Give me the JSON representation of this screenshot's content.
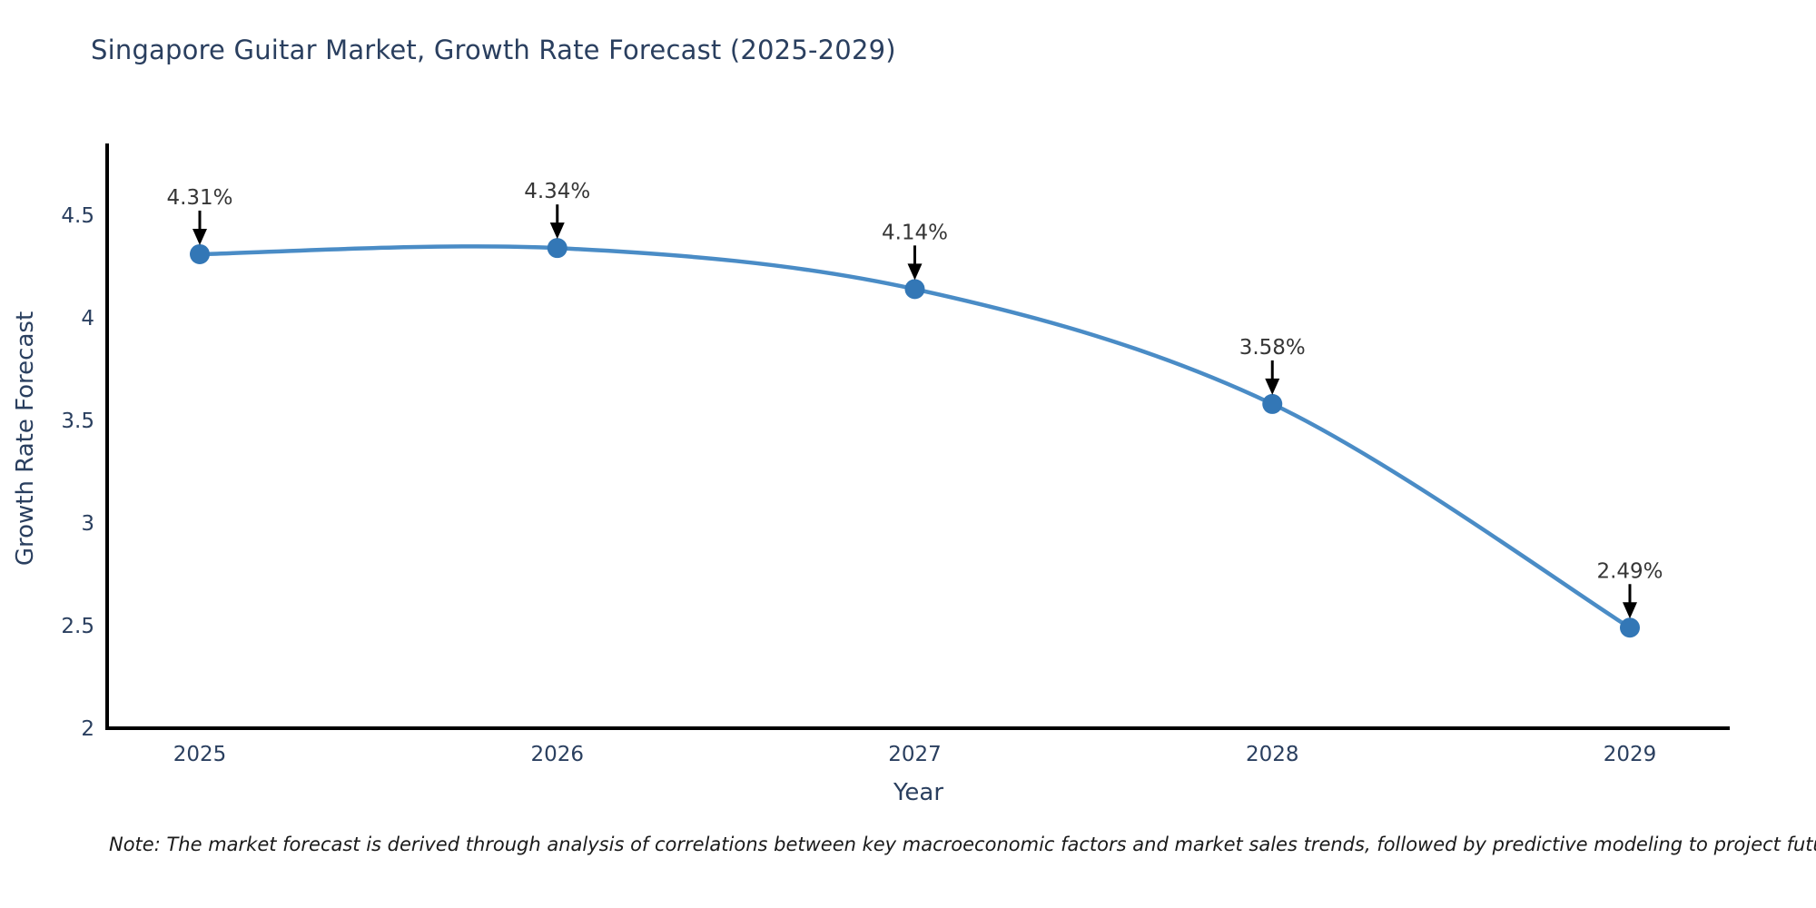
{
  "title": "Singapore Guitar Market, Growth Rate Forecast (2025-2029)",
  "note": "Note: The market forecast is derived through analysis of correlations between key macroeconomic factors and market sales trends, followed by predictive modeling to project future sales",
  "chart_data": {
    "type": "line",
    "title": "Singapore Guitar Market, Growth Rate Forecast (2025-2029)",
    "xlabel": "Year",
    "ylabel": "Growth Rate Forecast",
    "categories": [
      "2025",
      "2026",
      "2027",
      "2028",
      "2029"
    ],
    "x": [
      2025,
      2026,
      2027,
      2028,
      2029
    ],
    "series": [
      {
        "name": "Growth Rate Forecast",
        "values": [
          4.31,
          4.34,
          4.14,
          3.58,
          2.49
        ]
      }
    ],
    "point_labels": [
      "4.31%",
      "4.34%",
      "4.14%",
      "3.58%",
      "2.49%"
    ],
    "ytick_labels": [
      "2",
      "2.5",
      "3",
      "3.5",
      "4",
      "4.5"
    ],
    "yticks": [
      2,
      2.5,
      3,
      3.5,
      4,
      4.5
    ],
    "ylim": [
      2,
      4.84
    ],
    "grid": false,
    "legend_position": "none",
    "marker_style": "circle",
    "annotation_arrows": true,
    "colors": {
      "line": "#4a8cc6",
      "marker": "#3377b6",
      "axis": "#000000",
      "tick_text": "#2a3f5f",
      "annotation_text": "#363636",
      "arrow": "#000000",
      "title_text": "#2a3f5f",
      "background": "#ffffff"
    }
  }
}
